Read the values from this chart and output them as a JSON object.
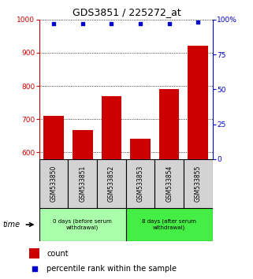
{
  "title": "GDS3851 / 225272_at",
  "samples": [
    "GSM533850",
    "GSM533851",
    "GSM533852",
    "GSM533853",
    "GSM533854",
    "GSM533855"
  ],
  "counts": [
    710,
    667,
    770,
    640,
    790,
    920
  ],
  "percentile_ranks": [
    97,
    97,
    97,
    97,
    97,
    98
  ],
  "ylim_left": [
    580,
    1000
  ],
  "ylim_right": [
    0,
    100
  ],
  "yticks_left": [
    600,
    700,
    800,
    900,
    1000
  ],
  "yticks_right": [
    0,
    25,
    50,
    75,
    100
  ],
  "groups": [
    {
      "label": "0 days (before serum\nwithdrawal)",
      "samples_idx": [
        0,
        2
      ],
      "color": "#aaffaa"
    },
    {
      "label": "8 days (after serum\nwithdrawal)",
      "samples_idx": [
        3,
        5
      ],
      "color": "#44ee44"
    }
  ],
  "bar_color": "#cc0000",
  "scatter_color": "#0000cc",
  "bar_width": 0.7,
  "legend_count_color": "#cc0000",
  "legend_pct_color": "#0000cc",
  "title_fontsize": 9,
  "tick_fontsize": 6.5,
  "label_fontsize": 5.5,
  "legend_fontsize": 7,
  "background_color": "#ffffff",
  "sample_box_color": "#d3d3d3"
}
